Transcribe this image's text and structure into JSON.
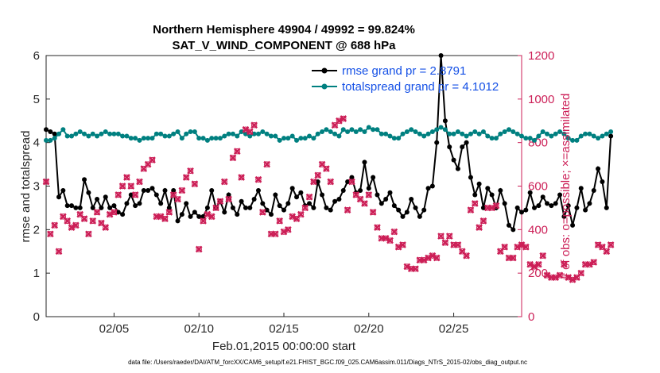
{
  "chart_data": {
    "type": "line",
    "title_line1": "Northern Hemisphere 49904 / 49992 = 99.824%",
    "title_line2": "SAT_V_WIND_COMPONENT @ 688 hPa",
    "xlabel": "Feb.01,2015 00:00:00 start",
    "ylabel_left": "rmse and totalspread",
    "ylabel_right": "# of obs: o=possible; ×=assimilated",
    "footer": "data file: /Users/raeder/DAI/ATM_forcXX/CAM6_setup/f.e21.FHIST_BGC.f09_025.CAM6assim.011/Diags_NTrS_2015-02/obs_diag_output.nc",
    "x_range": [
      1.0,
      29.0
    ],
    "x_ticks": [
      5,
      10,
      15,
      20,
      25
    ],
    "x_tick_labels": [
      "02/05",
      "02/10",
      "02/15",
      "02/20",
      "02/25"
    ],
    "y_left_range": [
      0,
      6
    ],
    "y_left_ticks": [
      "0",
      "1",
      "2",
      "3",
      "4",
      "5",
      "6"
    ],
    "y_right_range": [
      0,
      1200
    ],
    "y_right_ticks": [
      "0",
      "200",
      "400",
      "600",
      "800",
      "1000",
      "1200"
    ],
    "grid": false,
    "legend_position": "top-right",
    "series": [
      {
        "name": "rmse grand pr = 2.8791",
        "axis": "left",
        "color": "#000000",
        "marker": "dot",
        "x_start": 1.0,
        "x_step": 0.25,
        "values": [
          4.3,
          4.25,
          4.2,
          2.75,
          2.9,
          2.55,
          2.55,
          2.5,
          2.5,
          3.15,
          2.85,
          2.5,
          2.7,
          2.5,
          2.75,
          2.5,
          2.55,
          2.4,
          2.35,
          2.6,
          2.8,
          2.55,
          2.6,
          2.9,
          2.9,
          2.95,
          2.8,
          2.6,
          2.9,
          2.5,
          2.9,
          2.2,
          2.35,
          2.6,
          2.3,
          2.4,
          2.3,
          2.3,
          2.5,
          2.9,
          2.5,
          2.65,
          2.4,
          2.8,
          2.5,
          2.35,
          2.65,
          2.5,
          2.5,
          2.7,
          2.9,
          2.6,
          2.45,
          2.35,
          2.8,
          2.55,
          2.45,
          2.6,
          2.95,
          2.75,
          2.85,
          2.55,
          2.6,
          2.5,
          3.1,
          2.8,
          2.5,
          2.45,
          2.65,
          2.7,
          2.9,
          3.1,
          3.2,
          2.85,
          2.9,
          3.55,
          2.95,
          3.2,
          2.8,
          2.6,
          2.7,
          2.85,
          2.55,
          2.45,
          2.3,
          2.4,
          2.7,
          2.5,
          2.3,
          2.45,
          2.95,
          3.0,
          4.0,
          6.0,
          4.5,
          3.9,
          3.6,
          3.4,
          3.9,
          4.0,
          3.2,
          2.8,
          3.05,
          2.5,
          2.95,
          2.8,
          2.5,
          2.9,
          2.6,
          2.1,
          2.0,
          2.5,
          2.4,
          2.45,
          2.85,
          2.5,
          2.55,
          2.75,
          2.6,
          2.55,
          2.6,
          2.8,
          2.3,
          2.55,
          2.1,
          2.5,
          2.95,
          2.45,
          2.6,
          2.9,
          3.4,
          3.1,
          2.5,
          4.15
        ]
      },
      {
        "name": "totalspread grand pr = 4.1012",
        "axis": "left",
        "color": "#008080",
        "marker": "dot",
        "x_start": 1.0,
        "x_step": 0.25,
        "values": [
          4.05,
          4.05,
          4.1,
          4.2,
          4.3,
          4.15,
          4.15,
          4.2,
          4.25,
          4.2,
          4.15,
          4.2,
          4.15,
          4.2,
          4.25,
          4.2,
          4.2,
          4.2,
          4.15,
          4.15,
          4.1,
          4.1,
          4.05,
          4.1,
          4.1,
          4.1,
          4.2,
          4.2,
          4.15,
          4.15,
          4.2,
          4.25,
          4.1,
          4.2,
          4.25,
          4.25,
          4.1,
          4.1,
          4.05,
          4.1,
          4.1,
          4.1,
          4.15,
          4.2,
          4.2,
          4.15,
          4.25,
          4.2,
          4.15,
          4.2,
          4.2,
          4.25,
          4.2,
          4.15,
          4.15,
          4.05,
          4.1,
          4.1,
          4.15,
          4.05,
          4.1,
          4.1,
          4.15,
          4.1,
          4.2,
          4.25,
          4.3,
          4.25,
          4.2,
          4.15,
          4.3,
          4.25,
          4.3,
          4.25,
          4.3,
          4.25,
          4.35,
          4.3,
          4.3,
          4.2,
          4.2,
          4.15,
          4.1,
          4.1,
          4.2,
          4.25,
          4.3,
          4.25,
          4.2,
          4.15,
          4.2,
          4.25,
          4.3,
          4.35,
          4.3,
          4.2,
          4.2,
          4.25,
          4.2,
          4.15,
          4.2,
          4.25,
          4.2,
          4.25,
          4.15,
          4.1,
          4.1,
          4.2,
          4.25,
          4.3,
          4.25,
          4.2,
          4.15,
          4.1,
          4.1,
          4.05,
          4.15,
          4.25,
          4.2,
          4.15,
          4.2,
          4.25,
          4.2,
          4.1,
          4.05,
          4.05,
          4.15,
          4.2,
          4.2,
          4.15,
          4.1,
          4.15,
          4.2,
          4.25
        ]
      },
      {
        "name": "# obs possible",
        "axis": "right",
        "color": "#cc1f57",
        "marker": "circle",
        "x_start": 1.0,
        "x_step": 0.25,
        "values": [
          620,
          380,
          420,
          300,
          460,
          440,
          410,
          420,
          470,
          450,
          380,
          440,
          480,
          430,
          410,
          470,
          480,
          560,
          600,
          640,
          600,
          560,
          620,
          680,
          700,
          720,
          460,
          460,
          450,
          480,
          560,
          540,
          580,
          640,
          670,
          610,
          310,
          440,
          470,
          460,
          500,
          530,
          620,
          540,
          730,
          760,
          640,
          860,
          850,
          880,
          630,
          480,
          700,
          380,
          380,
          440,
          390,
          400,
          460,
          450,
          470,
          500,
          550,
          620,
          650,
          700,
          680,
          620,
          880,
          900,
          910,
          490,
          620,
          560,
          540,
          520,
          560,
          480,
          410,
          360,
          360,
          350,
          390,
          320,
          330,
          230,
          220,
          220,
          260,
          260,
          270,
          280,
          270,
          370,
          340,
          370,
          330,
          330,
          300,
          280,
          490,
          520,
          410,
          440,
          500,
          500,
          510,
          300,
          320,
          270,
          270,
          320,
          330,
          320,
          240,
          230,
          240,
          280,
          190,
          180,
          180,
          190,
          240,
          180,
          170,
          180,
          200,
          240,
          240,
          250,
          330,
          320,
          300,
          330
        ]
      },
      {
        "name": "# obs assimilated",
        "axis": "right",
        "color": "#cc1f57",
        "marker": "cross",
        "x_start": 1.0,
        "x_step": 0.25,
        "values": [
          620,
          380,
          420,
          300,
          460,
          440,
          410,
          420,
          470,
          450,
          380,
          440,
          480,
          430,
          410,
          470,
          480,
          560,
          600,
          640,
          600,
          560,
          620,
          680,
          700,
          720,
          460,
          460,
          450,
          480,
          560,
          540,
          580,
          640,
          670,
          610,
          310,
          440,
          470,
          460,
          500,
          530,
          620,
          540,
          730,
          760,
          640,
          860,
          850,
          880,
          630,
          480,
          700,
          380,
          380,
          440,
          390,
          400,
          460,
          450,
          470,
          500,
          550,
          620,
          650,
          700,
          680,
          620,
          880,
          900,
          910,
          490,
          620,
          560,
          540,
          520,
          560,
          480,
          410,
          360,
          360,
          350,
          390,
          320,
          330,
          230,
          220,
          220,
          260,
          260,
          270,
          280,
          270,
          370,
          340,
          370,
          330,
          330,
          300,
          280,
          490,
          520,
          410,
          440,
          500,
          500,
          510,
          300,
          320,
          270,
          270,
          320,
          330,
          320,
          240,
          230,
          240,
          280,
          190,
          180,
          180,
          190,
          240,
          180,
          170,
          180,
          200,
          240,
          240,
          250,
          330,
          320,
          300,
          330
        ]
      }
    ]
  }
}
